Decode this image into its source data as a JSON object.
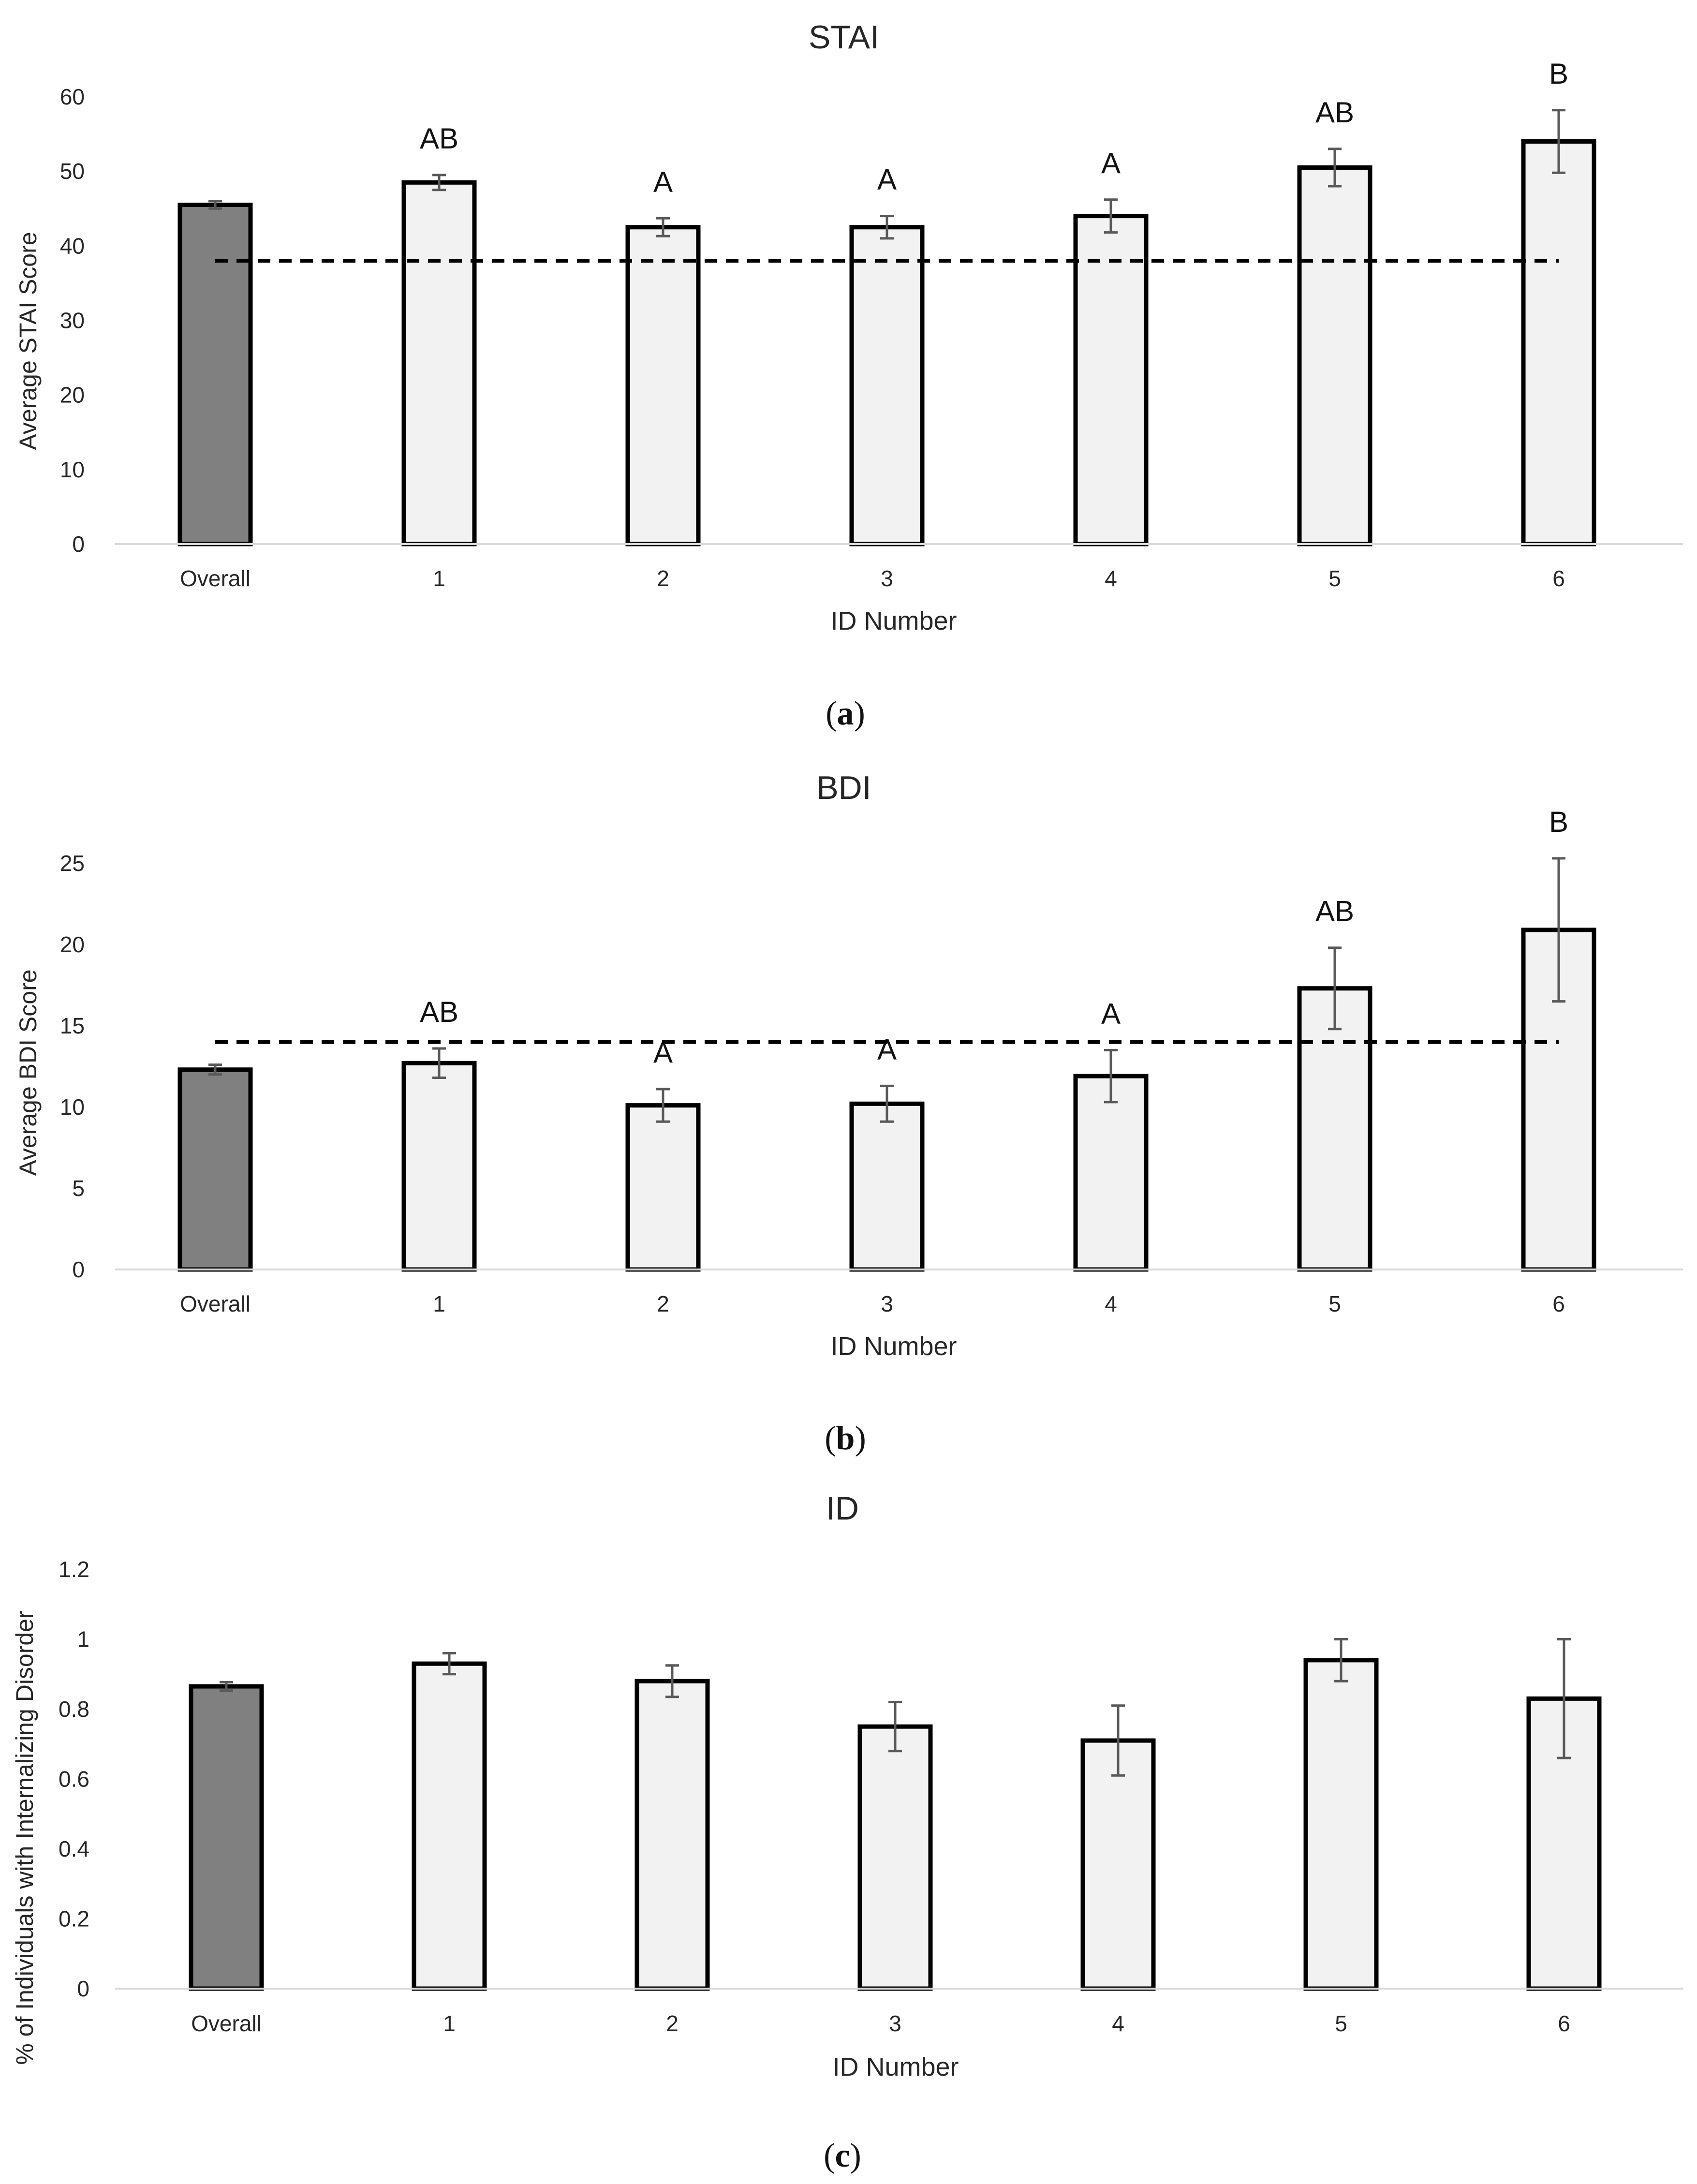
{
  "chart_data": [
    {
      "panel": "a",
      "caption_letter": "a",
      "type": "bar",
      "title": "STAI",
      "xlabel": "ID Number",
      "ylabel": "Average STAI Score",
      "categories": [
        "Overall",
        "1",
        "2",
        "3",
        "4",
        "5",
        "6"
      ],
      "values": [
        45.5,
        48.5,
        42.5,
        42.5,
        44.0,
        50.5,
        54.0
      ],
      "errors": [
        0.5,
        1.0,
        1.2,
        1.5,
        2.2,
        2.5,
        4.2
      ],
      "significance": [
        "",
        "AB",
        "A",
        "A",
        "A",
        "AB",
        "B"
      ],
      "reference_line": 38,
      "ylim": [
        0,
        60
      ],
      "yticks": [
        "0",
        "10",
        "20",
        "30",
        "40",
        "50",
        "60"
      ],
      "colors": {
        "overall": "#808080",
        "bar": "#f2f2f2",
        "stroke": "#000000",
        "error": "#595959"
      }
    },
    {
      "panel": "b",
      "caption_letter": "b",
      "type": "bar",
      "title": "BDI",
      "xlabel": "ID Number",
      "ylabel": "Average BDI Score",
      "categories": [
        "Overall",
        "1",
        "2",
        "3",
        "4",
        "5",
        "6"
      ],
      "values": [
        12.3,
        12.7,
        10.1,
        10.2,
        11.9,
        17.3,
        20.9
      ],
      "errors": [
        0.3,
        0.9,
        1.0,
        1.1,
        1.6,
        2.5,
        4.4
      ],
      "significance": [
        "",
        "AB",
        "A",
        "A",
        "A",
        "AB",
        "B"
      ],
      "reference_line": 14,
      "ylim": [
        0,
        25
      ],
      "yticks": [
        "0",
        "5",
        "10",
        "15",
        "20",
        "25"
      ],
      "colors": {
        "overall": "#808080",
        "bar": "#f2f2f2",
        "stroke": "#000000",
        "error": "#595959"
      }
    },
    {
      "panel": "c",
      "caption_letter": "c",
      "type": "bar",
      "title": "ID",
      "xlabel": "ID Number",
      "ylabel": "% of Individuals with Internalizing Disorder",
      "categories": [
        "Overall",
        "1",
        "2",
        "3",
        "4",
        "5",
        "6"
      ],
      "values": [
        0.865,
        0.93,
        0.88,
        0.75,
        0.71,
        0.94,
        0.83
      ],
      "errors": [
        0.012,
        0.03,
        0.045,
        0.07,
        0.1,
        0.06,
        0.17
      ],
      "significance": [
        "",
        "",
        "",
        "",
        "",
        "",
        ""
      ],
      "reference_line": null,
      "ylim": [
        0,
        1.2
      ],
      "yticks": [
        "0",
        "0.2",
        "0.4",
        "0.6",
        "0.8",
        "1",
        "1.2"
      ],
      "colors": {
        "overall": "#808080",
        "bar": "#f2f2f2",
        "stroke": "#000000",
        "error": "#595959"
      }
    }
  ]
}
